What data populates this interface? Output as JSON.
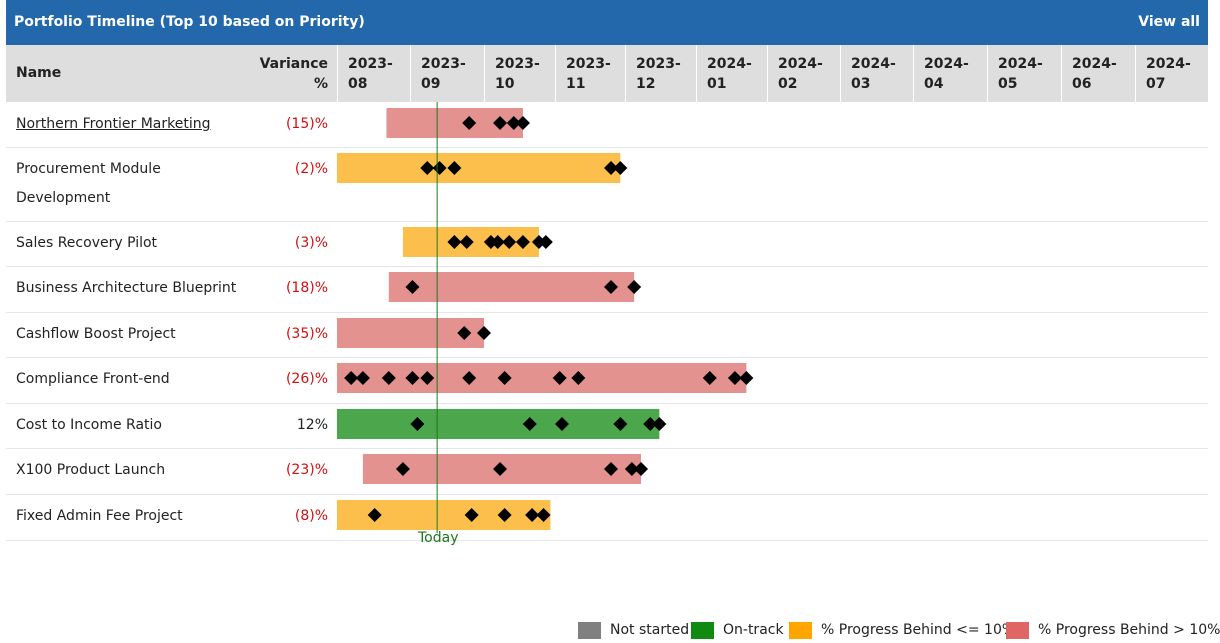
{
  "header": {
    "title": "Portfolio Timeline (Top 10 based on Priority)",
    "view_all": "View all"
  },
  "columns": {
    "name": "Name",
    "variance_line1": "Variance",
    "variance_line2": "%"
  },
  "months": [
    {
      "year": "2023-",
      "mon": "08"
    },
    {
      "year": "2023-",
      "mon": "09"
    },
    {
      "year": "2023-",
      "mon": "10"
    },
    {
      "year": "2023-",
      "mon": "11"
    },
    {
      "year": "2023-",
      "mon": "12"
    },
    {
      "year": "2024-",
      "mon": "01"
    },
    {
      "year": "2024-",
      "mon": "02"
    },
    {
      "year": "2024-",
      "mon": "03"
    },
    {
      "year": "2024-",
      "mon": "04"
    },
    {
      "year": "2024-",
      "mon": "05"
    },
    {
      "year": "2024-",
      "mon": "06"
    },
    {
      "year": "2024-",
      "mon": "07"
    }
  ],
  "today_label": "Today",
  "legend": [
    {
      "label": "Not started",
      "color": "#808080"
    },
    {
      "label": "On-track",
      "color": "#108a10"
    },
    {
      "label": "% Progress Behind <= 10%",
      "color": "#ffa500"
    },
    {
      "label": "% Progress Behind > 10%",
      "color": "#e06666"
    }
  ],
  "chart_data": {
    "type": "gantt",
    "title": "Portfolio Timeline (Top 10 based on Priority)",
    "x_axis": "month",
    "x_range": [
      "2023-08",
      "2024-07"
    ],
    "today": "2023-09-12",
    "status_colors": {
      "on_track": "#4ca64c",
      "behind_le_10": "#fdbf4c",
      "behind_gt_10": "#e4928f"
    },
    "projects": [
      {
        "name": "Northern Frontier Marketing",
        "variance": "(15)%",
        "variance_color": "#d01010",
        "status": "behind_gt_10",
        "start": "2023-08-22",
        "end": "2023-10-18",
        "milestones": [
          "2023-09-25",
          "2023-10-08",
          "2023-10-14",
          "2023-10-18"
        ]
      },
      {
        "name": "Procurement Module Development",
        "variance": "(2)%",
        "variance_color": "#d01010",
        "status": "behind_le_10",
        "start": "2023-08-01",
        "end": "2023-11-29",
        "milestones": [
          "2023-09-08",
          "2023-09-13",
          "2023-09-19",
          "2023-11-25",
          "2023-11-29"
        ]
      },
      {
        "name": "Sales Recovery Pilot",
        "variance": "(3)%",
        "variance_color": "#d01010",
        "status": "behind_le_10",
        "start": "2023-08-29",
        "end": "2023-10-25",
        "milestones": [
          "2023-09-19",
          "2023-09-24",
          "2023-10-04",
          "2023-10-07",
          "2023-10-12",
          "2023-10-18",
          "2023-10-25",
          "2023-10-28"
        ]
      },
      {
        "name": "Business Architecture Blueprint",
        "variance": "(18)%",
        "variance_color": "#d01010",
        "status": "behind_gt_10",
        "start": "2023-08-23",
        "end": "2023-12-05",
        "milestones": [
          "2023-09-02",
          "2023-11-25",
          "2023-12-05"
        ]
      },
      {
        "name": "Cashflow Boost Project",
        "variance": "(35)%",
        "variance_color": "#d01010",
        "status": "behind_gt_10",
        "start": "2023-08-01",
        "end": "2023-10-01",
        "milestones": [
          "2023-09-23",
          "2023-10-01"
        ]
      },
      {
        "name": "Compliance Front-end",
        "variance": "(26)%",
        "variance_color": "#d01010",
        "status": "behind_gt_10",
        "start": "2023-08-01",
        "end": "2024-01-23",
        "milestones": [
          "2023-08-07",
          "2023-08-12",
          "2023-08-23",
          "2023-09-02",
          "2023-09-08",
          "2023-09-25",
          "2023-10-10",
          "2023-11-03",
          "2023-11-11",
          "2024-01-07",
          "2024-01-18",
          "2024-01-23"
        ]
      },
      {
        "name": "Cost to Income Ratio",
        "variance": "12%",
        "variance_color": "#222222",
        "status": "on_track",
        "start": "2023-08-01",
        "end": "2023-12-16",
        "milestones": [
          "2023-09-04",
          "2023-10-21",
          "2023-11-04",
          "2023-11-29",
          "2023-12-12",
          "2023-12-16"
        ]
      },
      {
        "name": "X100 Product Launch",
        "variance": "(23)%",
        "variance_color": "#d01010",
        "status": "behind_gt_10",
        "start": "2023-08-12",
        "end": "2023-12-08",
        "milestones": [
          "2023-08-29",
          "2023-10-08",
          "2023-11-25",
          "2023-12-04",
          "2023-12-08"
        ]
      },
      {
        "name": "Fixed Admin Fee Project",
        "variance": "(8)%",
        "variance_color": "#d01010",
        "status": "behind_le_10",
        "start": "2023-08-01",
        "end": "2023-10-30",
        "milestones": [
          "2023-08-17",
          "2023-09-26",
          "2023-10-10",
          "2023-10-22",
          "2023-10-27"
        ]
      }
    ]
  }
}
